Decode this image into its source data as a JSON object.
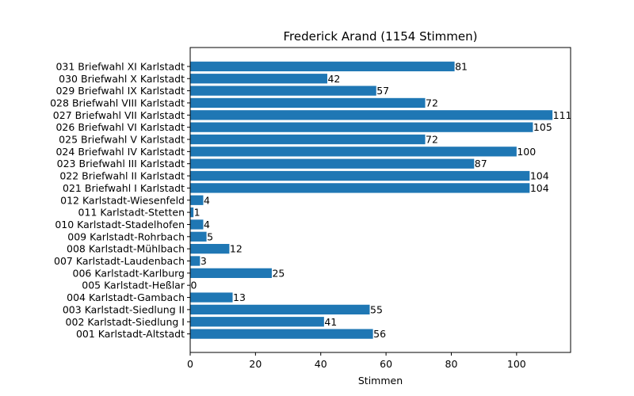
{
  "chart_data": {
    "type": "bar",
    "orientation": "horizontal",
    "title": "Frederick Arand (1154 Stimmen)",
    "xlabel": "Stimmen",
    "ylabel": "",
    "xlim": [
      0,
      116.55
    ],
    "xticks": [
      "0",
      "20",
      "40",
      "60",
      "80",
      "100"
    ],
    "bar_color": "#1f77b4",
    "grid": false,
    "categories": [
      "001 Karlstadt-Altstadt",
      "002 Karlstadt-Siedlung I",
      "003 Karlstadt-Siedlung II",
      "004 Karlstadt-Gambach",
      "005 Karlstadt-Heßlar",
      "006 Karlstadt-Karlburg",
      "007 Karlstadt-Laudenbach",
      "008 Karlstadt-Mühlbach",
      "009 Karlstadt-Rohrbach",
      "010 Karlstadt-Stadelhofen",
      "011 Karlstadt-Stetten",
      "012 Karlstadt-Wiesenfeld",
      "021 Briefwahl I Karlstadt",
      "022 Briefwahl II Karlstadt",
      "023 Briefwahl III Karlstadt",
      "024 Briefwahl IV Karlstadt",
      "025 Briefwahl V Karlstadt",
      "026 Briefwahl VI Karlstadt",
      "027 Briefwahl VII Karlstadt",
      "028 Briefwahl VIII Karlstadt",
      "029 Briefwahl IX Karlstadt",
      "030 Briefwahl X Karlstadt",
      "031 Briefwahl XI Karlstadt"
    ],
    "values": [
      56,
      41,
      55,
      13,
      0,
      25,
      3,
      12,
      5,
      4,
      1,
      4,
      104,
      104,
      87,
      100,
      72,
      105,
      111,
      72,
      57,
      42,
      81
    ]
  }
}
